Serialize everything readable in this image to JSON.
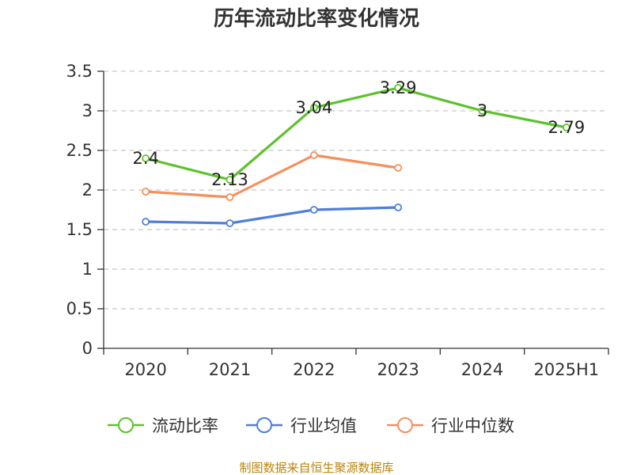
{
  "title": "历年流动比率变化情况",
  "source_note": "制图数据来自恒生聚源数据库",
  "chart_data": {
    "type": "line",
    "title": "历年流动比率变化情况",
    "categories": [
      "2020",
      "2021",
      "2022",
      "2023",
      "2024",
      "2025H1"
    ],
    "ylim": [
      0,
      3.5
    ],
    "yticks": [
      "0",
      "0.5",
      "1",
      "1.5",
      "2",
      "2.5",
      "3",
      "3.5"
    ],
    "grid": true,
    "legend_position": "bottom",
    "series": [
      {
        "name": "流动比率",
        "color": "#5cc22a",
        "values": [
          2.4,
          2.13,
          3.04,
          3.29,
          3,
          2.79
        ],
        "labels": [
          "2.4",
          "2.13",
          "3.04",
          "3.29",
          "3",
          "2.79"
        ]
      },
      {
        "name": "行业均值",
        "color": "#4f7fd8",
        "values": [
          1.6,
          1.58,
          1.75,
          1.78,
          null,
          null
        ]
      },
      {
        "name": "行业中位数",
        "color": "#f58f5c",
        "values": [
          1.98,
          1.91,
          2.44,
          2.28,
          null,
          null
        ]
      }
    ]
  }
}
